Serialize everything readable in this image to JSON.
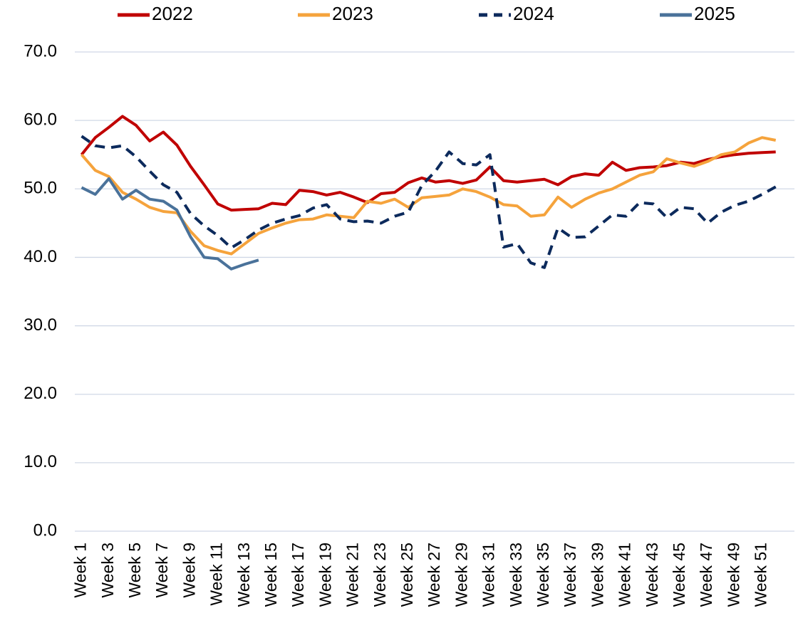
{
  "chart_data": {
    "type": "line",
    "categories": [
      "Week 1",
      null,
      "Week 3",
      null,
      "Week 5",
      null,
      "Week 7",
      null,
      "Week 9",
      null,
      "Week 11",
      null,
      "Week 13",
      null,
      "Week 15",
      null,
      "Week 17",
      null,
      "Week 19",
      null,
      "Week 21",
      null,
      "Week 23",
      null,
      "Week 25",
      null,
      "Week 27",
      null,
      "Week 29",
      null,
      "Week 31",
      null,
      "Week 33",
      null,
      "Week 35",
      null,
      "Week 37",
      null,
      "Week 39",
      null,
      "Week 41",
      null,
      "Week 43",
      null,
      "Week 45",
      null,
      "Week 47",
      null,
      "Week 49",
      null,
      "Week 51",
      null
    ],
    "series": [
      {
        "name": "2022",
        "color": "#c00000",
        "dashed": false,
        "values": [
          55.0,
          57.5,
          59.0,
          60.6,
          59.3,
          57.0,
          58.3,
          56.4,
          53.3,
          50.6,
          47.8,
          46.9,
          47.0,
          47.1,
          47.9,
          47.7,
          49.8,
          49.6,
          49.1,
          49.5,
          48.8,
          48.0,
          49.3,
          49.5,
          50.9,
          51.6,
          51.0,
          51.2,
          50.8,
          51.3,
          53.2,
          51.2,
          51.0,
          51.2,
          51.4,
          50.6,
          51.8,
          52.2,
          52.0,
          53.9,
          52.7,
          53.1,
          53.2,
          53.4,
          53.9,
          53.7,
          54.3,
          54.7,
          55.0,
          55.2,
          55.3,
          55.4
        ]
      },
      {
        "name": "2023",
        "color": "#f5a33c",
        "dashed": false,
        "values": [
          55.0,
          52.7,
          51.8,
          49.5,
          48.5,
          47.3,
          46.7,
          46.5,
          43.8,
          41.7,
          41.0,
          40.5,
          42.0,
          43.5,
          44.3,
          45.0,
          45.5,
          45.6,
          46.2,
          46.0,
          45.8,
          48.2,
          47.9,
          48.5,
          47.3,
          48.7,
          48.9,
          49.1,
          50.0,
          49.6,
          48.8,
          47.7,
          47.5,
          46.0,
          46.2,
          48.8,
          47.3,
          48.5,
          49.4,
          50.0,
          51.0,
          52.0,
          52.5,
          54.4,
          53.8,
          53.3,
          54.0,
          55.0,
          55.4,
          56.7,
          57.5,
          57.1
        ]
      },
      {
        "name": "2024",
        "color": "#0c2a5c",
        "dashed": true,
        "values": [
          57.7,
          56.3,
          56.0,
          56.3,
          54.7,
          52.6,
          50.6,
          49.5,
          46.4,
          44.6,
          43.2,
          41.4,
          42.6,
          44.0,
          45.0,
          45.6,
          46.1,
          47.2,
          47.7,
          45.6,
          45.2,
          45.3,
          45.0,
          46.0,
          46.6,
          50.5,
          52.6,
          55.4,
          53.7,
          53.5,
          55.0,
          41.5,
          42.0,
          39.2,
          38.5,
          44.3,
          42.9,
          43.0,
          44.6,
          46.2,
          46.0,
          48.0,
          47.8,
          45.8,
          47.3,
          47.1,
          45.0,
          46.6,
          47.6,
          48.2,
          49.2,
          50.3
        ]
      },
      {
        "name": "2025",
        "color": "#4a729a",
        "dashed": false,
        "values": [
          50.2,
          49.2,
          51.5,
          48.5,
          49.8,
          48.5,
          48.2,
          46.9,
          43.0,
          40.0,
          39.8,
          38.3,
          39.0,
          39.6,
          null,
          null,
          null,
          null,
          null,
          null,
          null,
          null,
          null,
          null,
          null,
          null,
          null,
          null,
          null,
          null,
          null,
          null,
          null,
          null,
          null,
          null,
          null,
          null,
          null,
          null,
          null,
          null,
          null,
          null,
          null,
          null,
          null,
          null,
          null,
          null,
          null,
          null
        ]
      }
    ],
    "ylim": [
      0,
      70
    ],
    "yticks": [
      {
        "value": 0,
        "label": "0.0"
      },
      {
        "value": 10,
        "label": "10.0"
      },
      {
        "value": 20,
        "label": "20.0"
      },
      {
        "value": 30,
        "label": "30.0"
      },
      {
        "value": 40,
        "label": "40.0"
      },
      {
        "value": 50,
        "label": "50.0"
      },
      {
        "value": 60,
        "label": "60.0"
      },
      {
        "value": 70,
        "label": "70.0"
      }
    ],
    "grid": true,
    "legend": "top"
  }
}
